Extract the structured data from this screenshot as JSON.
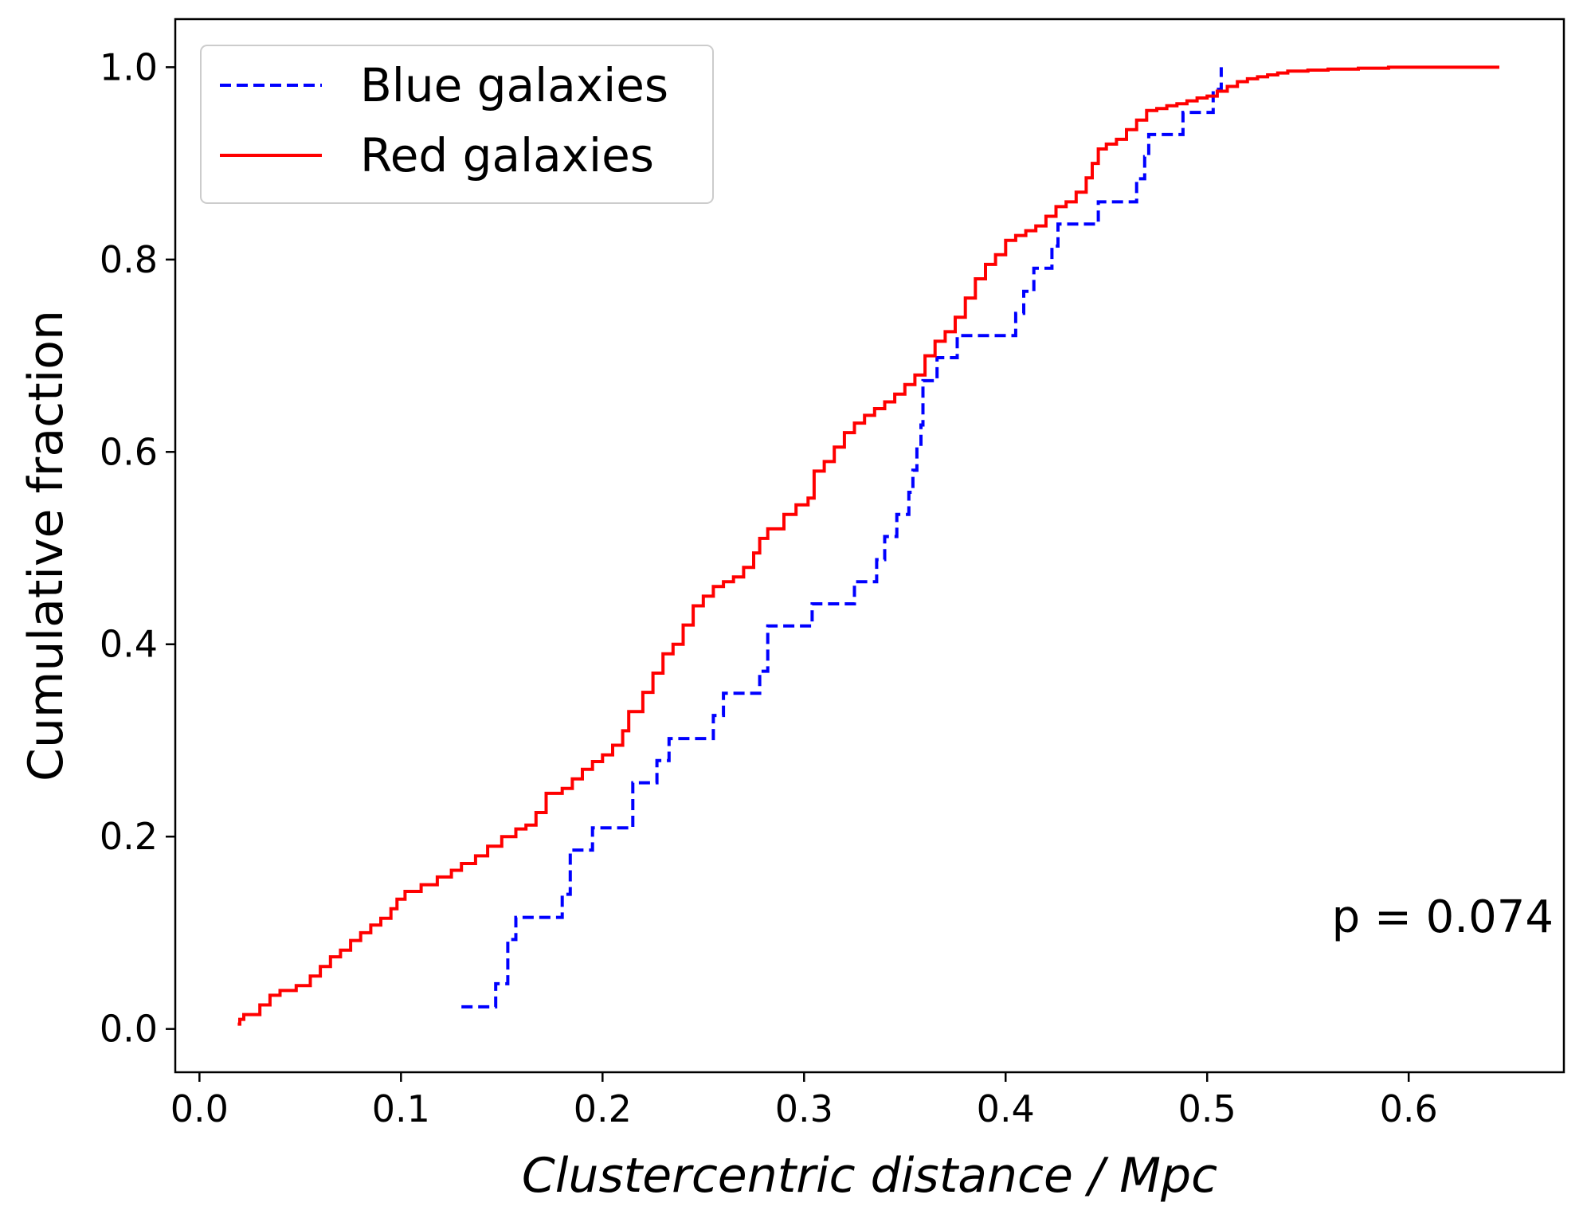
{
  "chart_data": {
    "type": "line",
    "step": true,
    "xlabel": "Clustercentric distance / Mpc",
    "ylabel": "Cumulative fraction",
    "xlim": [
      -0.012,
      0.677
    ],
    "ylim": [
      -0.045,
      1.05
    ],
    "xticks": [
      0.0,
      0.1,
      0.2,
      0.3,
      0.4,
      0.5,
      0.6
    ],
    "xtick_labels": [
      "0.0",
      "0.1",
      "0.2",
      "0.3",
      "0.4",
      "0.5",
      "0.6"
    ],
    "yticks": [
      0.0,
      0.2,
      0.4,
      0.6,
      0.8,
      1.0
    ],
    "ytick_labels": [
      "0.0",
      "0.2",
      "0.4",
      "0.6",
      "0.8",
      "1.0"
    ],
    "legend_position": "upper-left",
    "annotation": "p = 0.074",
    "series": [
      {
        "name": "Blue galaxies",
        "color": "#0000ff",
        "linestyle": "dashed",
        "x": [
          0.13,
          0.147,
          0.153,
          0.157,
          0.18,
          0.184,
          0.195,
          0.215,
          0.227,
          0.233,
          0.255,
          0.26,
          0.278,
          0.282,
          0.304,
          0.325,
          0.336,
          0.34,
          0.346,
          0.352,
          0.354,
          0.356,
          0.358,
          0.359,
          0.366,
          0.376,
          0.405,
          0.409,
          0.414,
          0.423,
          0.426,
          0.43,
          0.446,
          0.465,
          0.469,
          0.471,
          0.485,
          0.488,
          0.5,
          0.503,
          0.507
        ],
        "y": [
          0.023,
          0.047,
          0.093,
          0.116,
          0.14,
          0.186,
          0.209,
          0.256,
          0.279,
          0.302,
          0.326,
          0.349,
          0.372,
          0.419,
          0.442,
          0.465,
          0.488,
          0.512,
          0.535,
          0.558,
          0.581,
          0.605,
          0.628,
          0.674,
          0.698,
          0.721,
          0.744,
          0.767,
          0.791,
          0.814,
          0.837,
          0.837,
          0.86,
          0.884,
          0.907,
          0.93,
          0.93,
          0.953,
          0.953,
          0.977,
          1.0
        ]
      },
      {
        "name": "Red galaxies",
        "color": "#ff0000",
        "linestyle": "solid",
        "x": [
          0.019,
          0.02,
          0.022,
          0.03,
          0.035,
          0.04,
          0.048,
          0.055,
          0.06,
          0.065,
          0.07,
          0.075,
          0.08,
          0.085,
          0.09,
          0.095,
          0.098,
          0.102,
          0.11,
          0.118,
          0.125,
          0.13,
          0.137,
          0.143,
          0.15,
          0.157,
          0.162,
          0.167,
          0.172,
          0.18,
          0.185,
          0.19,
          0.195,
          0.2,
          0.205,
          0.21,
          0.213,
          0.22,
          0.225,
          0.23,
          0.235,
          0.24,
          0.245,
          0.25,
          0.255,
          0.26,
          0.265,
          0.27,
          0.275,
          0.278,
          0.282,
          0.29,
          0.296,
          0.302,
          0.305,
          0.31,
          0.315,
          0.32,
          0.325,
          0.33,
          0.335,
          0.34,
          0.345,
          0.35,
          0.355,
          0.36,
          0.365,
          0.37,
          0.375,
          0.38,
          0.385,
          0.39,
          0.395,
          0.4,
          0.405,
          0.41,
          0.415,
          0.42,
          0.425,
          0.43,
          0.435,
          0.44,
          0.443,
          0.446,
          0.45,
          0.455,
          0.46,
          0.465,
          0.47,
          0.475,
          0.48,
          0.485,
          0.49,
          0.495,
          0.5,
          0.505,
          0.51,
          0.515,
          0.52,
          0.525,
          0.53,
          0.535,
          0.54,
          0.55,
          0.56,
          0.575,
          0.59,
          0.61,
          0.63,
          0.645
        ],
        "y": [
          0.005,
          0.01,
          0.015,
          0.025,
          0.035,
          0.04,
          0.045,
          0.055,
          0.065,
          0.075,
          0.082,
          0.092,
          0.1,
          0.108,
          0.115,
          0.125,
          0.135,
          0.143,
          0.15,
          0.158,
          0.165,
          0.172,
          0.18,
          0.19,
          0.2,
          0.208,
          0.212,
          0.225,
          0.245,
          0.25,
          0.26,
          0.27,
          0.278,
          0.285,
          0.295,
          0.31,
          0.33,
          0.35,
          0.37,
          0.39,
          0.4,
          0.42,
          0.44,
          0.45,
          0.46,
          0.465,
          0.47,
          0.48,
          0.495,
          0.51,
          0.52,
          0.535,
          0.545,
          0.552,
          0.58,
          0.59,
          0.605,
          0.62,
          0.63,
          0.638,
          0.645,
          0.652,
          0.66,
          0.67,
          0.68,
          0.7,
          0.715,
          0.725,
          0.74,
          0.76,
          0.78,
          0.795,
          0.805,
          0.82,
          0.825,
          0.83,
          0.835,
          0.845,
          0.855,
          0.86,
          0.87,
          0.885,
          0.9,
          0.915,
          0.92,
          0.925,
          0.935,
          0.945,
          0.955,
          0.957,
          0.96,
          0.962,
          0.965,
          0.968,
          0.97,
          0.975,
          0.98,
          0.985,
          0.988,
          0.99,
          0.992,
          0.994,
          0.996,
          0.997,
          0.998,
          0.999,
          1.0,
          1.0,
          1.0,
          1.0
        ]
      }
    ]
  }
}
